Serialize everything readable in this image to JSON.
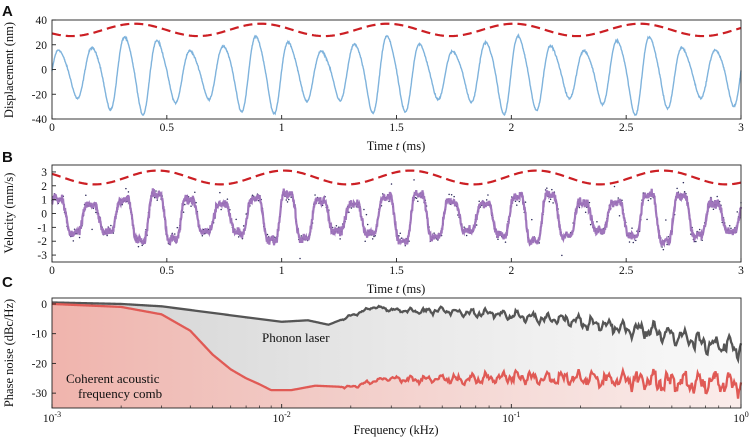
{
  "chart_data": [
    {
      "panel": "A",
      "type": "line",
      "xlabel_pre": "Time ",
      "xlabel_var": "t",
      "xlabel_post": " (ms)",
      "ylabel": "Displacement (nm)",
      "xlim": [
        0,
        3
      ],
      "ylim": [
        -40,
        40
      ],
      "xticks": [
        0,
        0.5,
        1,
        1.5,
        2,
        2.5,
        3
      ],
      "yticks": [
        -40,
        -20,
        0,
        20,
        40
      ],
      "xtick_labels": [
        "0",
        "0.5",
        "1",
        "1.5",
        "2",
        "2.5",
        "3"
      ],
      "ytick_labels": [
        "-40",
        "-20",
        "0",
        "20",
        "40"
      ],
      "series": [
        {
          "name": "Displacement",
          "style": "solid",
          "color": "#7fb3dc",
          "model": {
            "carrier_freq_khz": 7.0,
            "center": -3,
            "amp_min": 20,
            "amp_max": 34,
            "mod_period_ms": 0.55,
            "mod_phase_ms": 0.36
          }
        },
        {
          "name": "Envelope",
          "style": "dashed",
          "color": "#cc1f24",
          "model": {
            "center": 32,
            "amplitude": 5,
            "period_ms": 0.55,
            "peak_ms": 0.36
          }
        }
      ]
    },
    {
      "panel": "B",
      "type": "line",
      "xlabel_pre": "Time ",
      "xlabel_var": "t",
      "xlabel_post": " (ms)",
      "ylabel": "Velocity (mm/s)",
      "xlim": [
        0,
        3
      ],
      "ylim": [
        -3.5,
        3.5
      ],
      "xticks": [
        0,
        0.5,
        1,
        1.5,
        2,
        2.5,
        3
      ],
      "yticks": [
        -3,
        -2,
        -1,
        0,
        1,
        2,
        3
      ],
      "xtick_labels": [
        "0",
        "0.5",
        "1",
        "1.5",
        "2",
        "2.5",
        "3"
      ],
      "ytick_labels": [
        "-3",
        "-2",
        "-1",
        "0",
        "1",
        "2",
        "3"
      ],
      "series": [
        {
          "name": "Velocity",
          "style": "solid",
          "color": "#9b6fb8",
          "model": {
            "carrier_freq_khz": 7.0,
            "center": -0.3,
            "amp_min": 1.3,
            "amp_max": 2.4,
            "mod_period_ms": 0.55,
            "mod_phase_ms": 0.46
          }
        },
        {
          "name": "Raw samples",
          "style": "dots",
          "color": "#2c2a5a"
        },
        {
          "name": "Envelope",
          "style": "dashed",
          "color": "#cc1f24",
          "model": {
            "center": 2.6,
            "amplitude": 0.5,
            "period_ms": 0.55,
            "peak_ms": 0.46
          }
        }
      ]
    },
    {
      "panel": "C",
      "type": "line",
      "xscale": "log",
      "xlabel": "Frequency (kHz)",
      "ylabel": "Phase noise (dBc/Hz)",
      "xlim": [
        0.001,
        1
      ],
      "ylim": [
        -35,
        2
      ],
      "xticks": [
        0.001,
        0.01,
        0.1,
        1
      ],
      "xtick_bases": [
        "10",
        "10",
        "10",
        "10"
      ],
      "xtick_exps": [
        "-3",
        "-2",
        "-1",
        "0"
      ],
      "yticks": [
        0,
        -10,
        -20,
        -30
      ],
      "ytick_labels": [
        "0",
        "-10",
        "-20",
        "-30"
      ],
      "annotations": [
        {
          "text": "Phonon laser",
          "color": "#111111"
        },
        {
          "text": "Coherent acoustic",
          "color": "#d9534f"
        },
        {
          "text": "frequency comb",
          "color": "#d9534f"
        }
      ],
      "series": [
        {
          "name": "Phonon laser",
          "color": "#555555",
          "points": [
            [
              0.001,
              0.5
            ],
            [
              0.002,
              0
            ],
            [
              0.003,
              -0.8
            ],
            [
              0.005,
              -3
            ],
            [
              0.007,
              -4.5
            ],
            [
              0.01,
              -6
            ],
            [
              0.013,
              -5.5
            ],
            [
              0.016,
              -7
            ],
            [
              0.02,
              -4
            ],
            [
              0.025,
              -1
            ],
            [
              0.03,
              -2
            ],
            [
              0.04,
              -2.5
            ],
            [
              0.05,
              -2
            ],
            [
              0.06,
              -3
            ],
            [
              0.08,
              -3
            ],
            [
              0.1,
              -4
            ],
            [
              0.15,
              -5
            ],
            [
              0.2,
              -6
            ],
            [
              0.3,
              -8
            ],
            [
              0.4,
              -9
            ],
            [
              0.5,
              -10.5
            ],
            [
              0.7,
              -13
            ],
            [
              1,
              -15
            ]
          ]
        },
        {
          "name": "Coherent acoustic frequency comb",
          "color": "#e05a55",
          "points": [
            [
              0.001,
              0
            ],
            [
              0.002,
              -1
            ],
            [
              0.003,
              -3.5
            ],
            [
              0.004,
              -9
            ],
            [
              0.005,
              -17
            ],
            [
              0.006,
              -22
            ],
            [
              0.007,
              -25
            ],
            [
              0.008,
              -27
            ],
            [
              0.009,
              -29
            ],
            [
              0.011,
              -29
            ],
            [
              0.014,
              -27.5
            ],
            [
              0.02,
              -28
            ],
            [
              0.025,
              -26
            ],
            [
              0.03,
              -25
            ],
            [
              0.04,
              -25.5
            ],
            [
              0.05,
              -25
            ],
            [
              0.06,
              -25.5
            ],
            [
              0.08,
              -25
            ],
            [
              0.1,
              -24.5
            ],
            [
              0.15,
              -25
            ],
            [
              0.2,
              -25
            ],
            [
              0.3,
              -25.5
            ],
            [
              0.5,
              -26
            ],
            [
              0.7,
              -26.5
            ],
            [
              1,
              -27
            ]
          ]
        }
      ]
    }
  ]
}
